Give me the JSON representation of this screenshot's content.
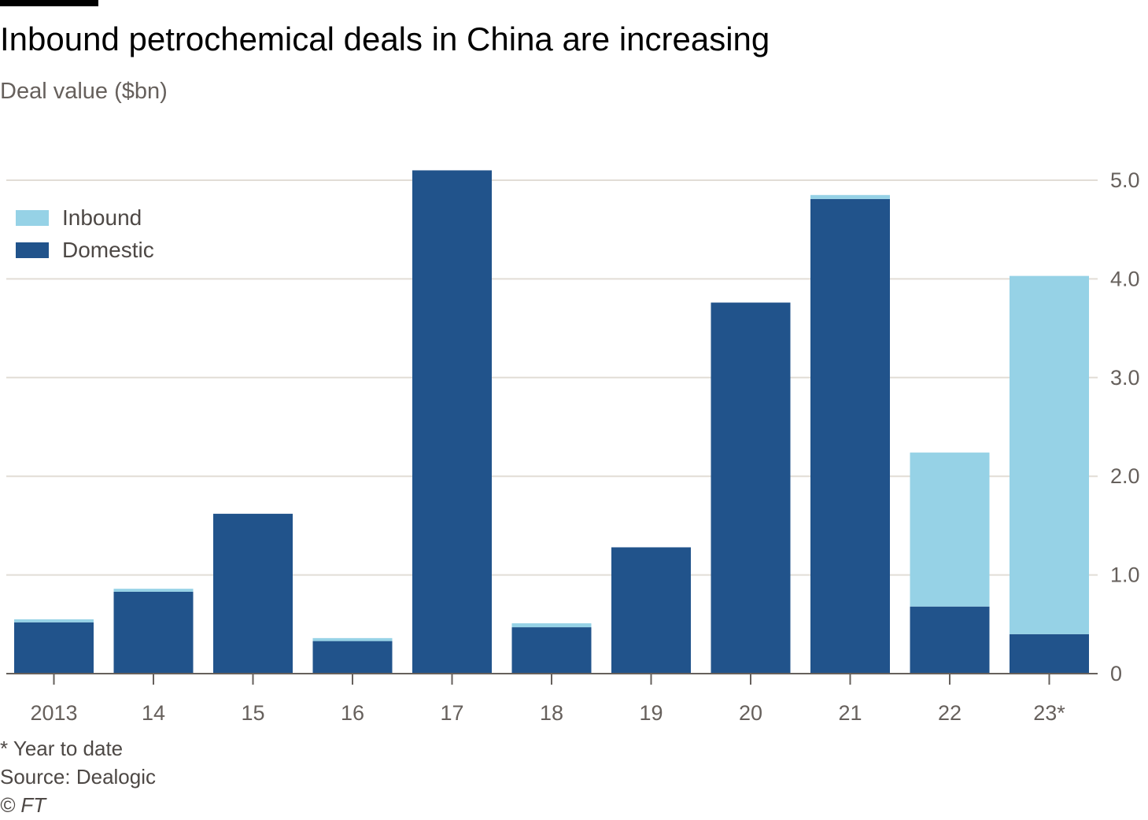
{
  "header": {
    "title": "Inbound petrochemical deals in China are increasing",
    "subtitle": "Deal value ($bn)"
  },
  "footer": {
    "note": "* Year to date",
    "source": "Source: Dealogic",
    "copyright": "© FT"
  },
  "colors": {
    "inbound": "#96d2e6",
    "domestic": "#21538b",
    "grid": "#e2ddd6",
    "axis": "#66605c"
  },
  "chart_data": {
    "type": "bar",
    "stacked": true,
    "categories": [
      "2013",
      "14",
      "15",
      "16",
      "17",
      "18",
      "19",
      "20",
      "21",
      "22",
      "23*"
    ],
    "series": [
      {
        "name": "Domestic",
        "color": "#21538b",
        "values": [
          0.52,
          0.83,
          1.62,
          0.33,
          5.1,
          0.47,
          1.28,
          3.76,
          4.81,
          0.68,
          0.4
        ]
      },
      {
        "name": "Inbound",
        "color": "#96d2e6",
        "values": [
          0.03,
          0.03,
          0.0,
          0.03,
          0.0,
          0.04,
          0.0,
          0.0,
          0.04,
          1.56,
          3.63
        ]
      }
    ],
    "legend_order": [
      "Inbound",
      "Domestic"
    ],
    "yticks": [
      "0",
      "1.0",
      "2.0",
      "3.0",
      "4.0",
      "5.0"
    ],
    "ylim": [
      0,
      5.1
    ],
    "y_axis_side": "right",
    "legend": "top-left",
    "grid": true
  }
}
